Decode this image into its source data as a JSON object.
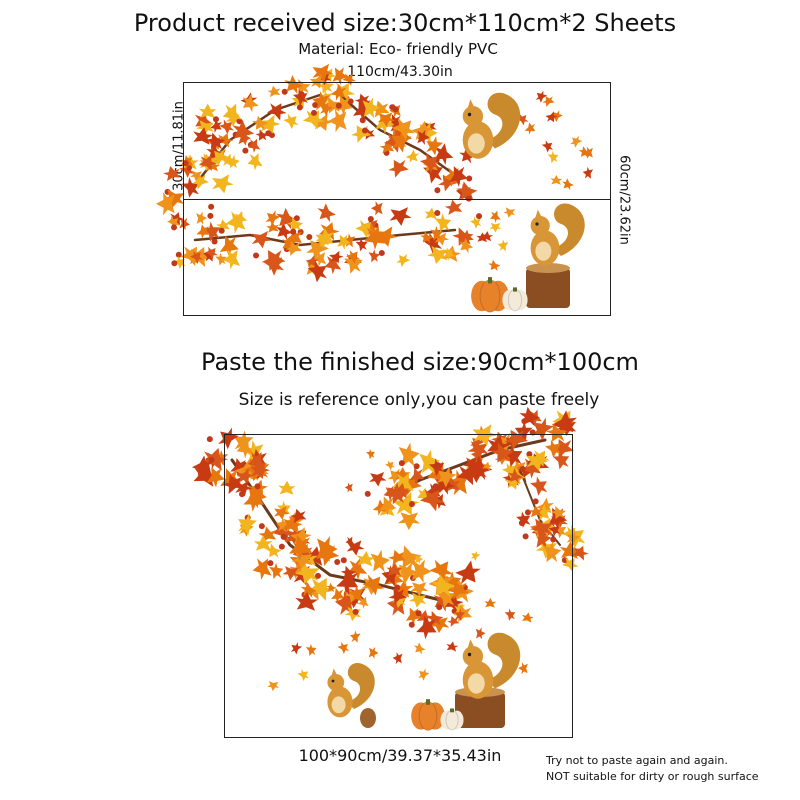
{
  "heading": {
    "title": "Product received size:30cm*110cm*2 Sheets",
    "material": "Material: Eco- friendly PVC"
  },
  "sheet_diagram": {
    "width_label": "110cm/43.30in",
    "height_label": "30cm/11.81in",
    "total_height_label": "60cm/23.62in"
  },
  "finished": {
    "title": "Paste the finished size:90cm*100cm",
    "subtitle": "Size is reference only,you can paste freely",
    "dimension_label": "100*90cm/39.37*35.43in"
  },
  "notes": {
    "line1": "Try not to paste again and again.",
    "line2": "NOT suitable for dirty or rough surface"
  },
  "colors": {
    "leaf_orange": "#e8760e",
    "leaf_red": "#c73a12",
    "leaf_yellow": "#f2b51d",
    "branch_brown": "#6b3a1c",
    "squirrel": "#d89636",
    "pumpkin": "#e7812a"
  }
}
